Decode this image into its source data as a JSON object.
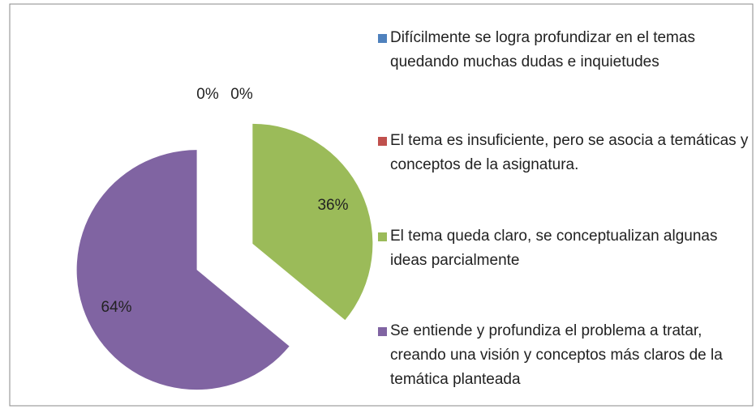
{
  "chart_data": {
    "type": "pie",
    "categories": [
      "Difícilmente se logra profundizar en el temas quedando muchas dudas e inquietudes",
      "El tema  es insuficiente, pero se asocia a temáticas y conceptos de la asignatura.",
      "El tema  queda  claro, se conceptualizan algunas ideas parcialmente",
      "Se entiende y profundiza el problema  a tratar, creando una visión y conceptos más claros de la temática  planteada"
    ],
    "values": [
      0,
      0,
      36,
      64
    ],
    "value_labels": [
      "0%",
      "0%",
      "36%",
      "64%"
    ],
    "colors": [
      "#4f81bd",
      "#c0504d",
      "#9bbb59",
      "#8064a2"
    ],
    "legend": "right"
  }
}
